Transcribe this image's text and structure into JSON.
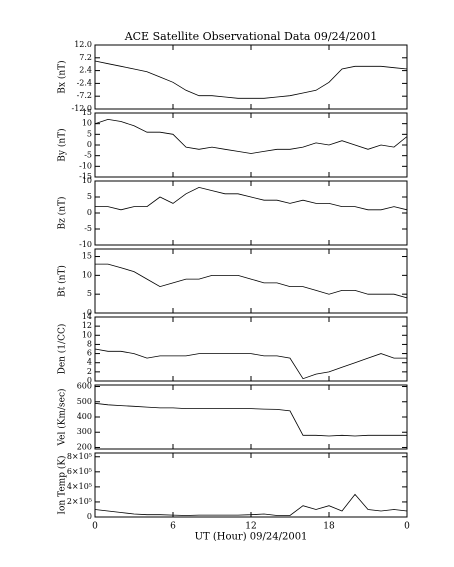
{
  "chart_data": [
    {
      "type": "line",
      "title": "ACE Satellite Observational Data   09/24/2001",
      "ylabel": "Bx (nT)",
      "x": [
        0,
        1,
        2,
        3,
        4,
        5,
        6,
        7,
        8,
        9,
        10,
        11,
        12,
        13,
        14,
        15,
        16,
        17,
        18,
        19,
        20,
        21,
        22,
        23,
        24
      ],
      "values": [
        6,
        5,
        4,
        3,
        2,
        0,
        -2,
        -5,
        -7,
        -7,
        -7.5,
        -8,
        -8,
        -8,
        -7.5,
        -7,
        -6,
        -5,
        -2,
        3,
        4,
        4,
        4,
        3.5,
        3
      ],
      "color": "#000000",
      "xlim": [
        0,
        24
      ],
      "ylim": [
        -12,
        12
      ],
      "yticks": [
        {
          "value": 12,
          "label": "12.0"
        },
        7.2,
        2.4,
        -2.4,
        -7.2,
        {
          "value": -12,
          "label": "-12.0"
        }
      ]
    },
    {
      "type": "line",
      "ylabel": "By (nT)",
      "x": [
        0,
        1,
        2,
        3,
        4,
        5,
        6,
        7,
        8,
        9,
        10,
        11,
        12,
        13,
        14,
        15,
        16,
        17,
        18,
        19,
        20,
        21,
        22,
        23,
        24
      ],
      "values": [
        10,
        12,
        11,
        9,
        6,
        6,
        5,
        -1,
        -2,
        -1,
        -2,
        -3,
        -4,
        -3,
        -2,
        -2,
        -1,
        1,
        0,
        2,
        0,
        -2,
        0,
        -1,
        4
      ],
      "color": "#000000",
      "xlim": [
        0,
        24
      ],
      "ylim": [
        -15,
        15
      ],
      "yticks": [
        15,
        10,
        5,
        0,
        -5,
        -10,
        -15
      ]
    },
    {
      "type": "line",
      "ylabel": "Bz (nT)",
      "x": [
        0,
        1,
        2,
        3,
        4,
        5,
        6,
        7,
        8,
        9,
        10,
        11,
        12,
        13,
        14,
        15,
        16,
        17,
        18,
        19,
        20,
        21,
        22,
        23,
        24
      ],
      "values": [
        2,
        2,
        1,
        2,
        2,
        5,
        3,
        6,
        8,
        7,
        6,
        6,
        5,
        4,
        4,
        3,
        4,
        3,
        3,
        2,
        2,
        1,
        1,
        2,
        1
      ],
      "color": "#000000",
      "xlim": [
        0,
        24
      ],
      "ylim": [
        -10,
        10
      ],
      "yticks": [
        10,
        5,
        0,
        -5,
        -10
      ]
    },
    {
      "type": "line",
      "ylabel": "Bt (nT)",
      "x": [
        0,
        1,
        2,
        3,
        4,
        5,
        6,
        7,
        8,
        9,
        10,
        11,
        12,
        13,
        14,
        15,
        16,
        17,
        18,
        19,
        20,
        21,
        22,
        23,
        24
      ],
      "values": [
        13,
        13,
        12,
        11,
        9,
        7,
        8,
        9,
        9,
        10,
        10,
        10,
        9,
        8,
        8,
        7,
        7,
        6,
        5,
        6,
        6,
        5,
        5,
        5,
        4
      ],
      "color": "#000000",
      "xlim": [
        0,
        24
      ],
      "ylim": [
        0,
        17
      ],
      "yticks": [
        0,
        5,
        10,
        15
      ]
    },
    {
      "type": "line",
      "ylabel": "Den (1/CC)",
      "x": [
        0,
        1,
        2,
        3,
        4,
        5,
        6,
        7,
        8,
        9,
        10,
        11,
        12,
        13,
        14,
        15,
        16,
        17,
        18,
        19,
        20,
        21,
        22,
        23,
        24
      ],
      "values": [
        7,
        6.5,
        6.5,
        6,
        5,
        5.5,
        5.5,
        5.5,
        6,
        6,
        6,
        6,
        6,
        5.5,
        5.5,
        5,
        0.5,
        1.5,
        2,
        3,
        4,
        5,
        6,
        5,
        5
      ],
      "color": "#000000",
      "xlim": [
        0,
        24
      ],
      "ylim": [
        0,
        14
      ],
      "yticks": [
        0,
        2,
        4,
        6,
        8,
        10,
        12,
        14
      ]
    },
    {
      "type": "line",
      "ylabel": "Vel (Km/sec)",
      "x": [
        0,
        1,
        2,
        3,
        4,
        5,
        6,
        7,
        8,
        9,
        10,
        11,
        12,
        13,
        14,
        15,
        16,
        17,
        18,
        19,
        20,
        21,
        22,
        23,
        24
      ],
      "values": [
        490,
        480,
        475,
        470,
        465,
        460,
        460,
        455,
        455,
        455,
        455,
        455,
        455,
        452,
        450,
        440,
        280,
        280,
        275,
        280,
        275,
        280,
        280,
        280,
        280
      ],
      "color": "#000000",
      "xlim": [
        0,
        24
      ],
      "ylim": [
        190,
        610
      ],
      "yticks": [
        200,
        300,
        400,
        500,
        600
      ]
    },
    {
      "type": "line",
      "ylabel": "Ion Temp (K)",
      "xlabel": "UT (Hour)  09/24/2001",
      "x": [
        0,
        1,
        2,
        3,
        4,
        5,
        6,
        7,
        8,
        9,
        10,
        11,
        12,
        13,
        14,
        15,
        16,
        17,
        18,
        19,
        20,
        21,
        22,
        23,
        24
      ],
      "values": [
        100000,
        80000,
        60000,
        40000,
        30000,
        30000,
        25000,
        20000,
        25000,
        25000,
        25000,
        25000,
        30000,
        40000,
        20000,
        20000,
        150000,
        100000,
        150000,
        80000,
        300000,
        100000,
        80000,
        100000,
        80000
      ],
      "color": "#000000",
      "xlim": [
        0,
        24
      ],
      "ylim": [
        0,
        850000
      ],
      "yticks": [
        0,
        {
          "value": 200000,
          "label": "2×10⁵"
        },
        {
          "value": 400000,
          "label": "4×10⁵"
        },
        {
          "value": 600000,
          "label": "6×10⁵"
        },
        {
          "value": 800000,
          "label": "8×10⁵"
        }
      ],
      "xticks": [
        0,
        6,
        12,
        18,
        {
          "value": 24,
          "label": "0"
        }
      ]
    }
  ]
}
